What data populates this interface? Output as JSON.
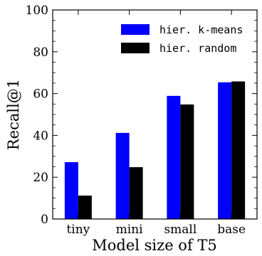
{
  "chart_data": {
    "type": "bar",
    "categories": [
      "tiny",
      "mini",
      "small",
      "base"
    ],
    "series": [
      {
        "name": "hier. k-means",
        "values": [
          27.2,
          41.2,
          58.9,
          65.4
        ],
        "color": "#0000ff"
      },
      {
        "name": "hier. random",
        "values": [
          11.2,
          24.8,
          54.8,
          65.8
        ],
        "color": "#000000"
      }
    ],
    "xlabel": "Model size of T5",
    "ylabel": "Recall@1",
    "ylim": [
      0,
      100
    ],
    "yticks": [
      0,
      20,
      40,
      60,
      80,
      100
    ],
    "grid": false,
    "legend_position": "top-right"
  }
}
